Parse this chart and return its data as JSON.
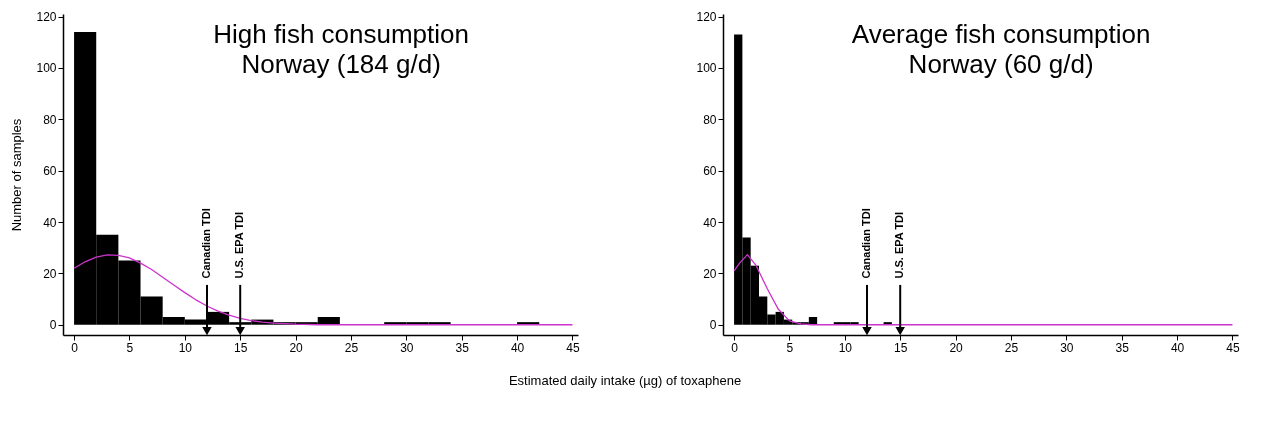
{
  "chart_data": [
    {
      "type": "histogram",
      "title": "High fish consumption",
      "subtitle": "Norway (184 g/d)",
      "xlabel": "Estimated daily intake (µg) of toxaphene",
      "ylabel": "Number of samples",
      "color": "#000000",
      "bins": [
        0,
        2,
        4,
        6,
        8,
        10,
        12,
        14,
        16,
        18,
        20,
        22,
        24,
        26,
        28,
        30,
        32,
        34,
        36,
        38,
        40,
        42,
        44
      ],
      "values": [
        114,
        35,
        25,
        11,
        3,
        2,
        5,
        1,
        2,
        1,
        1,
        3,
        0,
        0,
        1,
        1,
        1,
        0,
        0,
        0,
        1,
        0
      ],
      "series": [
        {
          "type": "line",
          "color": "#cc33cc",
          "x": [
            0,
            1,
            2,
            3,
            4,
            5,
            6,
            7,
            8,
            9,
            10,
            11,
            12,
            13,
            14,
            15,
            16,
            17,
            18,
            20,
            22,
            45
          ],
          "values": [
            22,
            24.5,
            26.3,
            27.2,
            27,
            26,
            24,
            21.5,
            18.5,
            15.5,
            12.5,
            9.7,
            7.3,
            5.3,
            3.7,
            2.5,
            1.6,
            1,
            0.6,
            0.2,
            0,
            0
          ]
        }
      ],
      "ref_lines": [
        {
          "axis": "x",
          "value": 12,
          "label": "Canadian TDI"
        },
        {
          "axis": "x",
          "value": 15,
          "label": "U.S. EPA TDI"
        }
      ],
      "xlim": [
        -1,
        45.5
      ],
      "xticks": [
        0,
        5,
        10,
        15,
        20,
        25,
        30,
        35,
        40,
        45
      ],
      "ylim": [
        -4,
        121
      ],
      "yticks": [
        0,
        20,
        40,
        60,
        80,
        100,
        120
      ]
    },
    {
      "type": "histogram",
      "title": "Average fish consumption",
      "subtitle": "Norway (60 g/d)",
      "color": "#000000",
      "bins": [
        0,
        0.75,
        1.5,
        2.25,
        3,
        3.75,
        4.5,
        5.25,
        6,
        6.75,
        7.5,
        8.25,
        9,
        9.75,
        10.5,
        11.25,
        12,
        12.75,
        13.5,
        14.25,
        15
      ],
      "values": [
        113,
        34,
        23,
        11,
        4,
        5,
        2,
        1,
        1,
        3,
        0,
        0,
        1,
        1,
        1,
        0,
        0,
        0,
        1,
        0
      ],
      "series": [
        {
          "type": "line",
          "color": "#cc33cc",
          "x": [
            0,
            0.5,
            1.2,
            2,
            3,
            4,
            5,
            6,
            7,
            45
          ],
          "values": [
            21,
            24,
            27.3,
            23,
            14,
            6,
            1.5,
            0.3,
            0,
            0
          ]
        }
      ],
      "ref_lines": [
        {
          "axis": "x",
          "value": 12,
          "label": "Canadian TDI"
        },
        {
          "axis": "x",
          "value": 15,
          "label": "U.S. EPA TDI"
        }
      ],
      "xlim": [
        -1,
        45.5
      ],
      "xticks": [
        0,
        5,
        10,
        15,
        20,
        25,
        30,
        35,
        40,
        45
      ],
      "ylim": [
        -4,
        121
      ],
      "yticks": [
        0,
        20,
        40,
        60,
        80,
        100,
        120
      ]
    }
  ]
}
